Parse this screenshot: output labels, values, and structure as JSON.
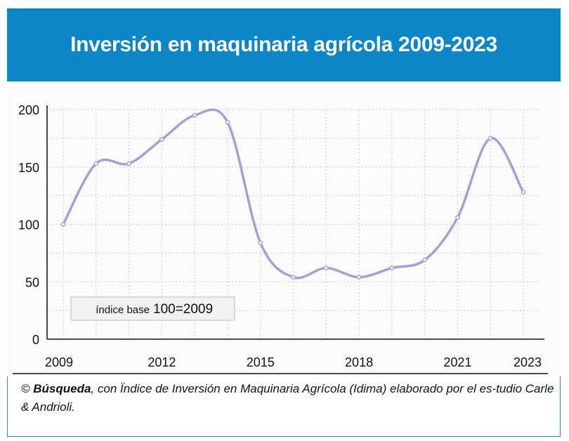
{
  "header": {
    "title": "Inversión en maquinaria agrícola 2009-2023"
  },
  "annotation": {
    "prefix": "índice base",
    "value": "100=2009"
  },
  "source": {
    "symbol": "©",
    "publisher": "Búsqueda",
    "text": ", con Ïndice de Inversión en Maquinaria Agrícola (Idima) elaborado por el es-tudio Carle & Andrioli."
  },
  "colors": {
    "header_bg": "#0c86c6",
    "line": "#9fa3d4",
    "grid": "#d9d9d9"
  },
  "chart_data": {
    "type": "line",
    "title": "Inversión en maquinaria agrícola 2009-2023",
    "xlabel": "",
    "ylabel": "",
    "x": [
      2009,
      2010,
      2011,
      2012,
      2013,
      2014,
      2015,
      2016,
      2017,
      2018,
      2019,
      2020,
      2021,
      2022,
      2023
    ],
    "y": [
      100,
      153,
      153,
      174,
      195,
      189,
      84,
      54,
      62,
      54,
      62,
      69,
      106,
      175,
      128
    ],
    "xlim": [
      2009,
      2023
    ],
    "ylim": [
      0,
      200
    ],
    "x_ticks": [
      "2009",
      "2012",
      "2015",
      "2018",
      "2021",
      "2023"
    ],
    "y_ticks": [
      "0",
      "50",
      "100",
      "150",
      "200"
    ],
    "grid": true,
    "legend": "none"
  }
}
